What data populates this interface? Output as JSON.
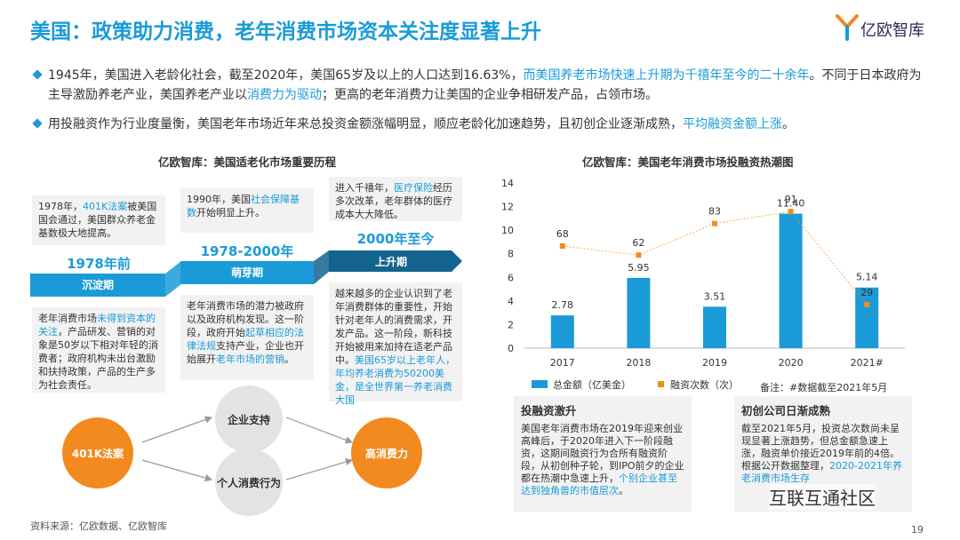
{
  "header": {
    "title": "美国：政策助力消费，老年消费市场资本关注度显著上升",
    "logo_text": "亿欧智库"
  },
  "bullets": [
    {
      "parts": [
        {
          "t": "1945年，美国进入老龄化社会，截至2020年，美国65岁及以上的人口达到16.63%，",
          "h": false
        },
        {
          "t": "而美国养老市场快速上升期为千禧年至今的二十余年",
          "h": true
        },
        {
          "t": "。不同于日本政府为主导激励养老产业，美国养老产业以",
          "h": false
        },
        {
          "t": "消费力为驱动",
          "h": true
        },
        {
          "t": "；更高的老年消费力让美国的企业争相研发产品，占领市场。",
          "h": false
        }
      ]
    },
    {
      "parts": [
        {
          "t": "用投融资作为行业度量衡，美国老年市场近年来总投资金额涨幅明显，顺应老龄化加速趋势，且初创企业逐渐成熟，",
          "h": false
        },
        {
          "t": "平均融资金额上涨",
          "h": true
        },
        {
          "t": "。",
          "h": false
        }
      ]
    }
  ],
  "timeline": {
    "title": "亿欧智库：美国适老化市场重要历程",
    "stages": [
      {
        "era": "1978年前",
        "phase": "沉淀期",
        "top_box": [
          {
            "t": "1978年，",
            "h": false
          },
          {
            "t": "401K法案",
            "h": true
          },
          {
            "t": "被美国国会通过，美国群众养老金基数极大地提高。",
            "h": false
          }
        ],
        "bottom_box": [
          {
            "t": "老年消费市场",
            "h": false
          },
          {
            "t": "未得到资本的关注",
            "h": true
          },
          {
            "t": "，产品研发、营销的对象是50岁以下相对年轻的消费者；政府机构未出台激励和扶持政策，产品的生产多为社会责任。",
            "h": false
          }
        ]
      },
      {
        "era": "1978-2000年",
        "phase": "萌芽期",
        "top_box": [
          {
            "t": "1990年，美国",
            "h": false
          },
          {
            "t": "社会保障基数",
            "h": true
          },
          {
            "t": "开始明显上升。",
            "h": false
          }
        ],
        "bottom_box": [
          {
            "t": "老年消费市场的潜力被政府以及政府机构发现。这一阶段，政府开始",
            "h": false
          },
          {
            "t": "起草相应的法律法规",
            "h": true
          },
          {
            "t": "支持产业，企业也开始展开",
            "h": false
          },
          {
            "t": "老年市场的营销",
            "h": true
          },
          {
            "t": "。",
            "h": false
          }
        ]
      },
      {
        "era": "2000年至今",
        "phase": "上升期",
        "top_box": [
          {
            "t": "进入千禧年，",
            "h": false
          },
          {
            "t": "医疗保险",
            "h": true
          },
          {
            "t": "经历多次改革，老年群体的医疗成本大大降低。",
            "h": false
          }
        ],
        "bottom_box": [
          {
            "t": "越来越多的企业认识到了老年消费群体的重要性，开始针对老年人的消费需求，开发产品。这一阶段，新科技开始被用来加持在适老产品中。",
            "h": false
          },
          {
            "t": "美国65岁以上老年人，年均养老消费为50200美金，是全世界第一养老消费大国",
            "h": true
          }
        ]
      }
    ]
  },
  "flow": {
    "start": "401K法案",
    "mid_top": "企业支持",
    "mid_bottom": "个人消费行为",
    "end": "高消费力"
  },
  "chart_data": {
    "type": "bar",
    "title": "亿欧智库：美国老年消费市场投融资热潮图",
    "categories": [
      "2017",
      "2018",
      "2019",
      "2020",
      "2021#"
    ],
    "series": [
      {
        "name": "总金额（亿美金）",
        "type": "bar",
        "values": [
          2.78,
          5.95,
          3.51,
          11.4,
          5.14
        ],
        "labels": [
          "2.78",
          "5.95",
          "3.51",
          "11.40",
          "5.14"
        ],
        "color": "#1a9bd7"
      },
      {
        "name": "融资次数（次）",
        "type": "line",
        "values": [
          68,
          62,
          83,
          91,
          29
        ],
        "labels": [
          "68",
          "62",
          "83",
          "91",
          "29"
        ],
        "color": "#f28a1f"
      }
    ],
    "ylim": [
      0,
      14
    ],
    "yticks": [
      "0",
      "2",
      "4",
      "6",
      "8",
      "10",
      "12",
      "14"
    ],
    "ylim_secondary": [
      0,
      110
    ],
    "note": "备注：#数据截至2021年5月"
  },
  "cards": [
    {
      "title": "投融资激升",
      "body": [
        {
          "t": "美国老年消费市场在2019年迎来创业高峰后，于2020年进入下一阶段融资，这期间融资行为合所有融资阶段，从初创种子轮，到IPO前夕的企业都在热潮中急速上升，",
          "h": false
        },
        {
          "t": "个别企业甚至达到独角兽的市值层次",
          "h": true
        },
        {
          "t": "。",
          "h": false
        }
      ]
    },
    {
      "title": "初创公司日渐成熟",
      "body": [
        {
          "t": "截至2021年5月，投资总次数尚未呈现显著上涨趋势，但总金额急速上涨，融资单价接近2019年前的4倍。根据公开数据整理，",
          "h": false
        },
        {
          "t": "2020-2021年养老消费市场生存",
          "h": true
        }
      ]
    }
  ],
  "footer": {
    "source": "资料来源：亿欧数据、亿欧智库",
    "page": "19",
    "watermark": "互联互通社区"
  }
}
